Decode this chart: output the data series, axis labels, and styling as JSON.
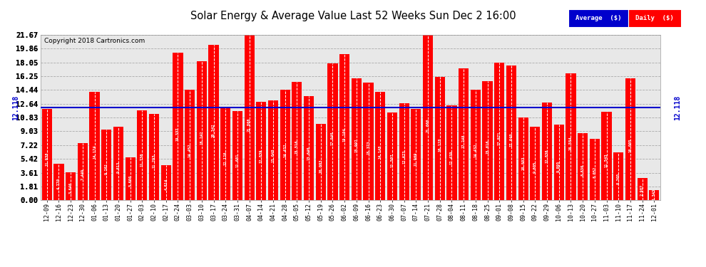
{
  "title": "Solar Energy & Average Value Last 52 Weeks Sun Dec 2 16:00",
  "copyright": "Copyright 2018 Cartronics.com",
  "average_value": 12.118,
  "bar_color": "#FF0000",
  "average_line_color": "#0000CC",
  "background_color": "#FFFFFF",
  "plot_bg_color": "#E8E8E8",
  "grid_color": "#AAAAAA",
  "ylim": [
    0.0,
    21.67
  ],
  "yticks": [
    0.0,
    1.81,
    3.61,
    5.42,
    7.22,
    9.03,
    10.83,
    12.64,
    14.44,
    16.25,
    18.05,
    19.86,
    21.67
  ],
  "categories": [
    "12-09",
    "12-16",
    "12-23",
    "12-30",
    "01-06",
    "01-13",
    "01-20",
    "01-27",
    "02-03",
    "02-10",
    "02-17",
    "02-24",
    "03-03",
    "03-10",
    "03-17",
    "03-24",
    "03-31",
    "04-07",
    "04-14",
    "04-21",
    "04-28",
    "05-05",
    "05-12",
    "05-19",
    "05-26",
    "06-02",
    "06-09",
    "06-16",
    "06-23",
    "06-30",
    "07-07",
    "07-14",
    "07-21",
    "07-28",
    "08-04",
    "08-11",
    "08-18",
    "08-25",
    "09-01",
    "09-08",
    "09-15",
    "09-22",
    "09-29",
    "10-06",
    "10-13",
    "10-20",
    "10-27",
    "11-03",
    "11-10",
    "11-17",
    "11-24",
    "12-01"
  ],
  "values": [
    11.938,
    4.77,
    3.646,
    7.449,
    14.174,
    9.261,
    9.613,
    5.66,
    11.736,
    11.293,
    4.614,
    19.337,
    14.452,
    18.242,
    20.342,
    12.126,
    11.681,
    21.866,
    12.839,
    13.048,
    14.432,
    15.516,
    13.64,
    10.003,
    17.94,
    19.104,
    15.997,
    15.373,
    14.148,
    11.507,
    12.673,
    11.969,
    21.666,
    16.128,
    12.439,
    17.248,
    14.432,
    15.616,
    17.971,
    17.64,
    10.803,
    9.605,
    12.836,
    9.895,
    16.584,
    8.83,
    8.052,
    11.543,
    6.305,
    16.005,
    2.907,
    1.343
  ],
  "legend_avg_color": "#0000CC",
  "legend_daily_color": "#FF0000"
}
